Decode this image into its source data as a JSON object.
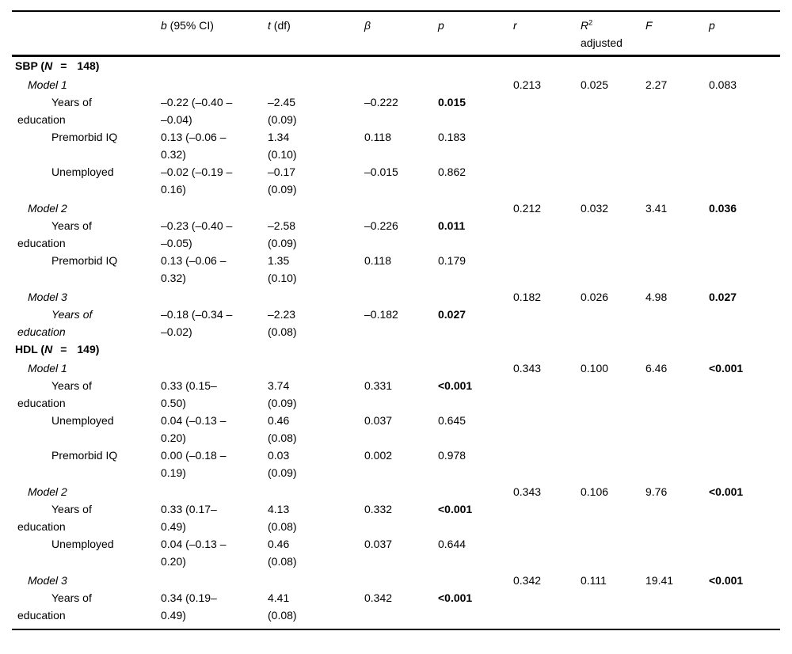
{
  "page": {
    "background": "#ffffff",
    "text_color": "#000000",
    "rule_color": "#000000"
  },
  "table": {
    "headers": [
      {
        "id": "label",
        "sym": "",
        "rest": ""
      },
      {
        "id": "b",
        "sym": "b",
        "rest": " (95% CI)"
      },
      {
        "id": "t",
        "sym": "t",
        "rest": " (df)"
      },
      {
        "id": "beta",
        "sym": "β",
        "rest": ""
      },
      {
        "id": "p",
        "sym": "p",
        "rest": ""
      },
      {
        "id": "r",
        "sym": "r",
        "rest": ""
      },
      {
        "id": "r2-adjusted",
        "sym": "R",
        "sup": "2",
        "rest": "",
        "line2": "adjusted"
      },
      {
        "id": "f",
        "sym": "F",
        "rest": ""
      },
      {
        "id": "p-model",
        "sym": "p",
        "rest": ""
      }
    ],
    "rows": [
      {
        "type": "section",
        "prefix": "SBP (",
        "n": "N",
        "eq": "=",
        "count": "148)"
      },
      {
        "type": "model",
        "label": "Model 1",
        "r": "0.213",
        "r2": "0.025",
        "f": "2.27",
        "p": "0.083",
        "p_bold": false
      },
      {
        "type": "predictor",
        "label": [
          "Years of",
          "education"
        ],
        "b": [
          "–0.22 (–0.40 –",
          "–0.04)"
        ],
        "t": [
          "–2.45",
          "(0.09)"
        ],
        "beta": "–0.222",
        "p": "0.015",
        "p_bold": true,
        "italic": false
      },
      {
        "type": "predictor",
        "label": [
          "Premorbid IQ"
        ],
        "b": [
          "0.13 (–0.06 –",
          "0.32)"
        ],
        "t": [
          "1.34",
          "(0.10)"
        ],
        "beta": "0.118",
        "p": "0.183",
        "p_bold": false,
        "italic": false
      },
      {
        "type": "predictor",
        "label": [
          "Unemployed"
        ],
        "b": [
          "–0.02 (–0.19 –",
          "0.16)"
        ],
        "t": [
          "–0.17",
          "(0.09)"
        ],
        "beta": "–0.015",
        "p": "0.862",
        "p_bold": false,
        "italic": false
      },
      {
        "type": "model",
        "label": "Model 2",
        "r": "0.212",
        "r2": "0.032",
        "f": "3.41",
        "p": "0.036",
        "p_bold": true
      },
      {
        "type": "predictor",
        "label": [
          "Years of",
          "education"
        ],
        "b": [
          "–0.23 (–0.40 –",
          "–0.05)"
        ],
        "t": [
          "–2.58",
          "(0.09)"
        ],
        "beta": "–0.226",
        "p": "0.011",
        "p_bold": true,
        "italic": false
      },
      {
        "type": "predictor",
        "label": [
          "Premorbid IQ"
        ],
        "b": [
          "0.13 (–0.06 –",
          "0.32)"
        ],
        "t": [
          "1.35",
          "(0.10)"
        ],
        "beta": "0.118",
        "p": "0.179",
        "p_bold": false,
        "italic": false
      },
      {
        "type": "model",
        "label": "Model 3",
        "r": "0.182",
        "r2": "0.026",
        "f": "4.98",
        "p": "0.027",
        "p_bold": true
      },
      {
        "type": "predictor",
        "label": [
          "Years of",
          "education"
        ],
        "b": [
          "–0.18 (–0.34 –",
          "–0.02)"
        ],
        "t": [
          "–2.23",
          "(0.08)"
        ],
        "beta": "–0.182",
        "p": "0.027",
        "p_bold": true,
        "italic": true
      },
      {
        "type": "section",
        "prefix": "HDL (",
        "n": "N",
        "eq": "=",
        "count": "149)"
      },
      {
        "type": "model",
        "label": "Model 1",
        "r": "0.343",
        "r2": "0.100",
        "f": "6.46",
        "p": "<0.001",
        "p_bold": true
      },
      {
        "type": "predictor",
        "label": [
          "Years of",
          "education"
        ],
        "b": [
          "0.33 (0.15–",
          "0.50)"
        ],
        "t": [
          "3.74",
          "(0.09)"
        ],
        "beta": "0.331",
        "p": "<0.001",
        "p_bold": true,
        "italic": false
      },
      {
        "type": "predictor",
        "label": [
          "Unemployed"
        ],
        "b": [
          "0.04 (–0.13 –",
          "0.20)"
        ],
        "t": [
          "0.46",
          "(0.08)"
        ],
        "beta": "0.037",
        "p": "0.645",
        "p_bold": false,
        "italic": false
      },
      {
        "type": "predictor",
        "label": [
          "Premorbid IQ"
        ],
        "b": [
          "0.00 (–0.18 –",
          "0.19)"
        ],
        "t": [
          "0.03",
          "(0.09)"
        ],
        "beta": "0.002",
        "p": "0.978",
        "p_bold": false,
        "italic": false
      },
      {
        "type": "model",
        "label": "Model 2",
        "r": "0.343",
        "r2": "0.106",
        "f": "9.76",
        "p": "<0.001",
        "p_bold": true
      },
      {
        "type": "predictor",
        "label": [
          "Years of",
          "education"
        ],
        "b": [
          "0.33 (0.17–",
          "0.49)"
        ],
        "t": [
          "4.13",
          "(0.08)"
        ],
        "beta": "0.332",
        "p": "<0.001",
        "p_bold": true,
        "italic": false
      },
      {
        "type": "predictor",
        "label": [
          "Unemployed"
        ],
        "b": [
          "0.04 (–0.13 –",
          "0.20)"
        ],
        "t": [
          "0.46",
          "(0.08)"
        ],
        "beta": "0.037",
        "p": "0.644",
        "p_bold": false,
        "italic": false
      },
      {
        "type": "model",
        "label": "Model 3",
        "r": "0.342",
        "r2": "0.111",
        "f": "19.41",
        "p": "<0.001",
        "p_bold": true
      },
      {
        "type": "predictor",
        "label": [
          "Years of",
          "education"
        ],
        "b": [
          "0.34 (0.19–",
          "0.49)"
        ],
        "t": [
          "4.41",
          "(0.08)"
        ],
        "beta": "0.342",
        "p": "<0.001",
        "p_bold": true,
        "italic": false
      }
    ]
  }
}
